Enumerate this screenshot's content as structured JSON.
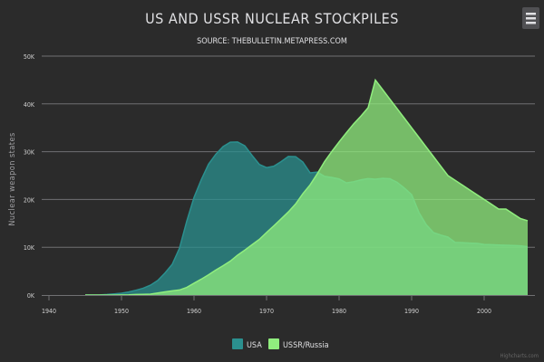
{
  "colors": {
    "background": "#2b2b2b",
    "title": "#e0e0e3",
    "subtitle": "#e0e0e3",
    "axis_label": "#a0a0a3",
    "tick_label": "#d0d0d0",
    "grid": "#707073",
    "axis_line": "#707073",
    "usa": "#2b908f",
    "ussr": "#90ee7e",
    "credit": "#666666",
    "menu_bg": "#505053",
    "menu_fg": "#e0e0e3"
  },
  "menu": {
    "icon": "hamburger-menu-icon"
  },
  "credits": "Highcharts.com",
  "chart_data": {
    "type": "area",
    "title": "US AND USSR NUCLEAR STOCKPILES",
    "subtitle": "SOURCE: THEBULLETIN.METAPRESS.COM",
    "ylabel": "Nuclear weapon states",
    "xlabel": "",
    "xlim": [
      1939,
      2007
    ],
    "ylim": [
      0,
      50000
    ],
    "x_ticks": [
      1940,
      1950,
      1960,
      1970,
      1980,
      1990,
      2000
    ],
    "x_tick_labels": [
      "1940",
      "1950",
      "1960",
      "1970",
      "1980",
      "1990",
      "2000"
    ],
    "y_ticks": [
      0,
      10000,
      20000,
      30000,
      40000,
      50000
    ],
    "y_tick_labels": [
      "0K",
      "10K",
      "20K",
      "30K",
      "40K",
      "50K"
    ],
    "grid": true,
    "legend_position": "bottom-center",
    "series": [
      {
        "name": "USA",
        "x": [
          1945,
          1946,
          1947,
          1948,
          1949,
          1950,
          1951,
          1952,
          1953,
          1954,
          1955,
          1956,
          1957,
          1958,
          1959,
          1960,
          1961,
          1962,
          1963,
          1964,
          1965,
          1966,
          1967,
          1968,
          1969,
          1970,
          1971,
          1972,
          1973,
          1974,
          1975,
          1976,
          1977,
          1978,
          1979,
          1980,
          1981,
          1982,
          1983,
          1984,
          1985,
          1986,
          1987,
          1988,
          1989,
          1990,
          1991,
          1992,
          1993,
          1994,
          1995,
          1996,
          1997,
          1998,
          1999,
          2000,
          2001,
          2002,
          2003,
          2004,
          2005,
          2006
        ],
        "values": [
          6,
          11,
          32,
          110,
          235,
          369,
          640,
          1005,
          1436,
          2063,
          3057,
          4618,
          6444,
          9822,
          15468,
          20434,
          24126,
          27387,
          29459,
          31056,
          31982,
          32040,
          31233,
          29224,
          27342,
          26662,
          26956,
          27912,
          28999,
          28965,
          27826,
          25579,
          25722,
          24826,
          24605,
          24304,
          23464,
          23708,
          24099,
          24357,
          24237,
          24401,
          24344,
          23586,
          22380,
          21004,
          17287,
          14747,
          13076,
          12555,
          12144,
          11009,
          10950,
          10871,
          10824,
          10577,
          10527,
          10475,
          10421,
          10358,
          10295,
          10104
        ]
      },
      {
        "name": "USSR/Russia",
        "x": [
          1945,
          1946,
          1947,
          1948,
          1949,
          1950,
          1951,
          1952,
          1953,
          1954,
          1955,
          1956,
          1957,
          1958,
          1959,
          1960,
          1961,
          1962,
          1963,
          1964,
          1965,
          1966,
          1967,
          1968,
          1969,
          1970,
          1971,
          1972,
          1973,
          1974,
          1975,
          1976,
          1977,
          1978,
          1979,
          1980,
          1981,
          1982,
          1983,
          1984,
          1985,
          1986,
          1987,
          1988,
          1989,
          1990,
          1991,
          1992,
          1993,
          1994,
          1995,
          1996,
          1997,
          1998,
          1999,
          2000,
          2001,
          2002,
          2003,
          2004,
          2005,
          2006
        ],
        "values": [
          0,
          0,
          0,
          0,
          5,
          25,
          50,
          120,
          150,
          200,
          426,
          660,
          869,
          1060,
          1605,
          2471,
          3322,
          4238,
          5221,
          6129,
          7089,
          8339,
          9399,
          10538,
          11643,
          13092,
          14478,
          15915,
          17385,
          19055,
          21205,
          23044,
          25393,
          27935,
          30062,
          32049,
          33952,
          35804,
          37431,
          39197,
          45000,
          43000,
          41000,
          39000,
          37000,
          35000,
          33000,
          31000,
          29000,
          27000,
          25000,
          24000,
          23000,
          22000,
          21000,
          20000,
          19000,
          18000,
          18000,
          17000,
          16000,
          15537
        ]
      }
    ]
  }
}
